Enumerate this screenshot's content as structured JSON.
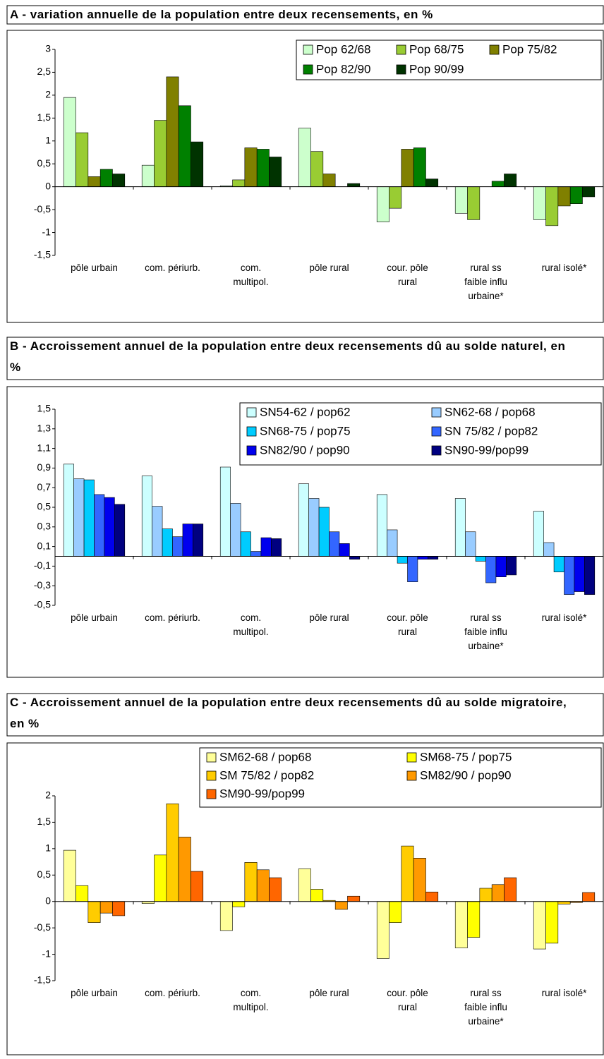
{
  "chart_data": [
    {
      "type": "bar",
      "title": "A - variation annuelle de la population entre deux recensements, en %",
      "categories": [
        "pôle urbain",
        "com. périurb.",
        "com. multipol.",
        "pôle rural",
        "cour. pôle rural",
        "rural ss faible influ urbaine*",
        "rural isolé*"
      ],
      "series": [
        {
          "name": "Pop 62/68",
          "color": "#ccffcc",
          "values": [
            1.95,
            0.47,
            0.02,
            1.28,
            -0.77,
            -0.58,
            -0.72
          ]
        },
        {
          "name": "Pop 68/75",
          "color": "#99cc33",
          "values": [
            1.18,
            1.45,
            0.15,
            0.77,
            -0.47,
            -0.72,
            -0.85
          ]
        },
        {
          "name": "Pop 75/82",
          "color": "#808000",
          "values": [
            0.22,
            2.4,
            0.85,
            0.28,
            0.82,
            0,
            -0.42
          ]
        },
        {
          "name": "Pop 82/90",
          "color": "#008000",
          "values": [
            0.38,
            1.77,
            0.82,
            0,
            0.85,
            0.12,
            -0.37
          ]
        },
        {
          "name": "Pop 90/99",
          "color": "#003300",
          "values": [
            0.28,
            0.98,
            0.65,
            0.07,
            0.17,
            0.28,
            -0.22
          ]
        }
      ],
      "ylim": [
        -1.5,
        3
      ],
      "yticks": [
        3,
        {
          "value": 2.5,
          "label": "2,5"
        },
        2,
        {
          "value": 1.5,
          "label": "1,5"
        },
        1,
        {
          "value": 0.5,
          "label": "0,5"
        },
        0,
        {
          "value": -0.5,
          "label": "-0,5"
        },
        -1,
        {
          "value": -1.5,
          "label": "-1,5"
        }
      ],
      "grid": false,
      "legend": "upper right"
    },
    {
      "type": "bar",
      "title": "B - Accroissement annuel de la population entre deux recensements dû au solde naturel, en %",
      "categories": [
        "pôle urbain",
        "com. périurb.",
        "com. multipol.",
        "pôle rural",
        "cour. pôle rural",
        "rural ss faible influ urbaine*",
        "rural isolé*"
      ],
      "series": [
        {
          "name": "SN54-62 / pop62",
          "color": "#ccffff",
          "values": [
            0.94,
            0.82,
            0.91,
            0.74,
            0.63,
            0.59,
            0.46
          ]
        },
        {
          "name": "SN62-68 / pop68",
          "color": "#99ccff",
          "values": [
            0.79,
            0.51,
            0.54,
            0.59,
            0.27,
            0.25,
            0.14
          ]
        },
        {
          "name": "SN68-75 / pop75",
          "color": "#00ccff",
          "values": [
            0.78,
            0.28,
            0.25,
            0.5,
            -0.07,
            -0.05,
            -0.16
          ]
        },
        {
          "name": "SN 75/82 / pop82",
          "color": "#3366ff",
          "values": [
            0.63,
            0.2,
            0.05,
            0.25,
            -0.26,
            -0.27,
            -0.39
          ]
        },
        {
          "name": "SN82/90 / pop90",
          "color": "#0000ee",
          "values": [
            0.6,
            0.33,
            0.19,
            0.13,
            -0.03,
            -0.21,
            -0.36
          ]
        },
        {
          "name": "SN90-99/pop99",
          "color": "#000080",
          "values": [
            0.53,
            0.33,
            0.18,
            -0.03,
            -0.03,
            -0.19,
            -0.39
          ]
        }
      ],
      "ylim": [
        -0.5,
        1.5
      ],
      "yticks": [
        {
          "value": 1.5,
          "label": "1,5"
        },
        {
          "value": 1.3,
          "label": "1,3"
        },
        {
          "value": 1.1,
          "label": "1,1"
        },
        {
          "value": 0.9,
          "label": "0,9"
        },
        {
          "value": 0.7,
          "label": "0,7"
        },
        {
          "value": 0.5,
          "label": "0,5"
        },
        {
          "value": 0.3,
          "label": "0,3"
        },
        {
          "value": 0.1,
          "label": "0,1"
        },
        {
          "value": -0.1,
          "label": "-0,1"
        },
        {
          "value": -0.3,
          "label": "-0,3"
        },
        {
          "value": -0.5,
          "label": "-0,5"
        }
      ],
      "grid": false,
      "legend": "upper right"
    },
    {
      "type": "bar",
      "title": "C - Accroissement annuel de la population entre deux recensements dû au solde migratoire, en %",
      "categories": [
        "pôle urbain",
        "com. périurb.",
        "com. multipol.",
        "pôle rural",
        "cour. pôle rural",
        "rural ss faible influ urbaine*",
        "rural isolé*"
      ],
      "series": [
        {
          "name": "SM62-68 / pop68",
          "color": "#ffff99",
          "values": [
            0.97,
            -0.04,
            -0.55,
            0.62,
            -1.08,
            -0.88,
            -0.9
          ]
        },
        {
          "name": "SM68-75 / pop75",
          "color": "#ffff00",
          "values": [
            0.3,
            0.88,
            -0.1,
            0.23,
            -0.4,
            -0.68,
            -0.79
          ]
        },
        {
          "name": "SM 75/82 / pop82",
          "color": "#ffcc00",
          "values": [
            -0.4,
            1.85,
            0.74,
            0.02,
            1.05,
            0.25,
            -0.05
          ]
        },
        {
          "name": "SM82/90 / pop90",
          "color": "#ff9900",
          "values": [
            -0.22,
            1.22,
            0.6,
            -0.15,
            0.82,
            0.32,
            -0.02
          ]
        },
        {
          "name": "SM90-99/pop99",
          "color": "#ff6600",
          "values": [
            -0.27,
            0.57,
            0.45,
            0.1,
            0.18,
            0.45,
            0.17
          ]
        }
      ],
      "ylim": [
        -1.5,
        2
      ],
      "yticks": [
        2,
        {
          "value": 1.5,
          "label": "1,5"
        },
        1,
        {
          "value": 0.5,
          "label": "0,5"
        },
        0,
        {
          "value": -0.5,
          "label": "-0,5"
        },
        -1,
        {
          "value": -1.5,
          "label": "-1,5"
        }
      ],
      "grid": false,
      "legend": "upper right"
    }
  ]
}
